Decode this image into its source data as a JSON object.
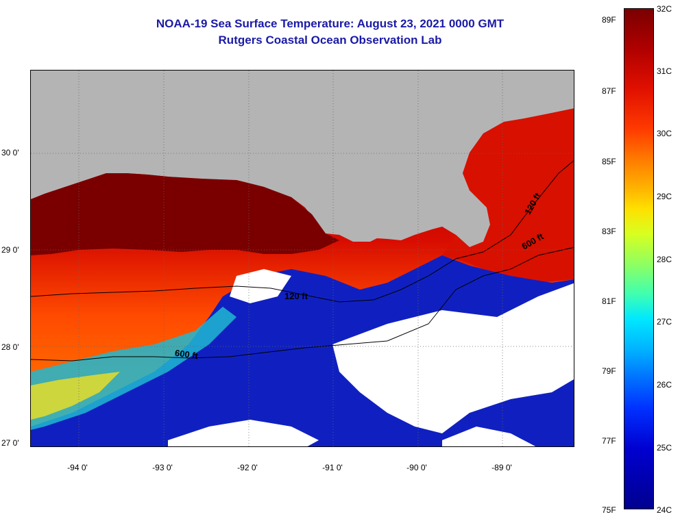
{
  "title": {
    "line1": "NOAA-19 Sea Surface Temperature:  August 23, 2021 0000 GMT",
    "line2": "Rutgers Coastal Ocean Observation Lab"
  },
  "map": {
    "lat_labels": [
      "30 0'",
      "29 0'",
      "28 0'",
      "27 0'"
    ],
    "lon_labels": [
      "-94 0'",
      "-93 0'",
      "-92 0'",
      "-91 0'",
      "-90 0'",
      "-89 0'"
    ],
    "contour_labels": [
      "120 ft",
      "120 ft",
      "600 ft",
      "600 ft"
    ],
    "colors": {
      "land": "#b4b4b4",
      "cloud": "#ffffff",
      "hot": "#7a0000",
      "warm": "#e01000",
      "cool": "#0000c0"
    }
  },
  "colorbar": {
    "fahrenheit": [
      "89F",
      "87F",
      "85F",
      "83F",
      "81F",
      "79F",
      "77F",
      "75F"
    ],
    "celsius": [
      "32C",
      "31C",
      "30C",
      "29C",
      "28C",
      "27C",
      "26C",
      "25C",
      "24C"
    ]
  }
}
